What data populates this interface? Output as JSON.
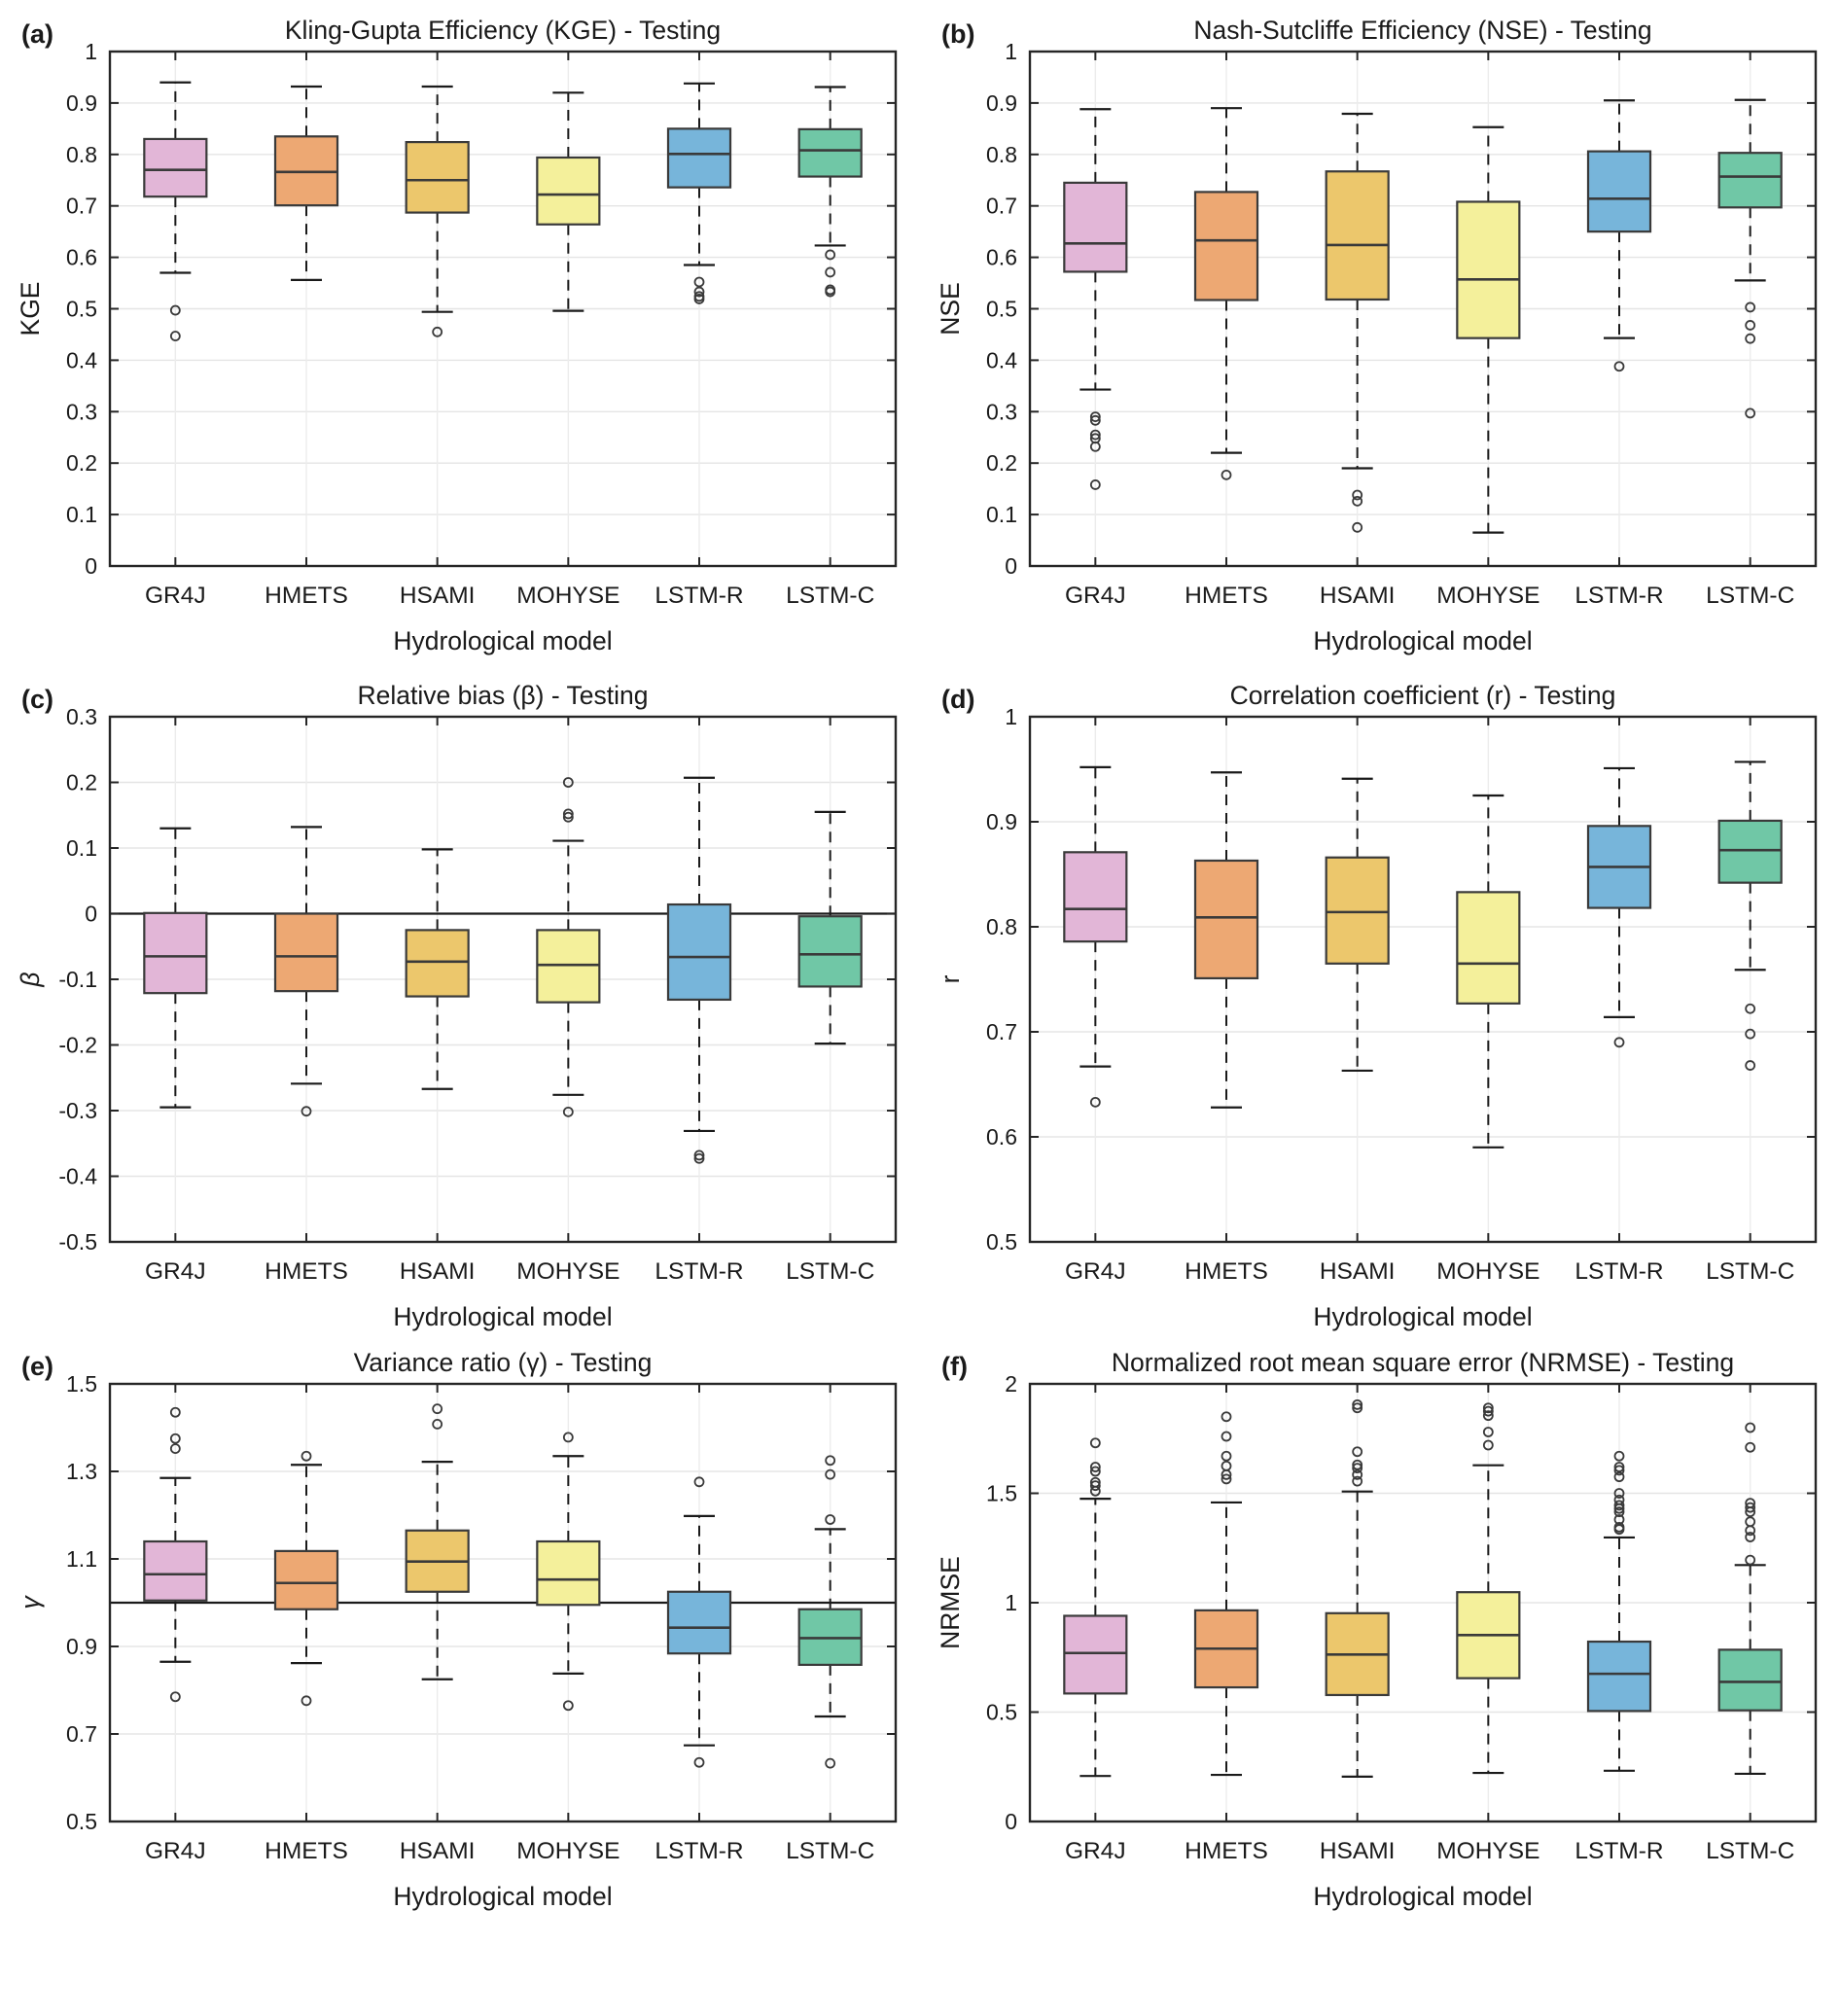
{
  "figure": {
    "xlabel": "Hydrological model",
    "categories": [
      "GR4J",
      "HMETS",
      "HSAMI",
      "MOHYSE",
      "LSTM-R",
      "LSTM-C"
    ],
    "box_colors": [
      "#e2b6d7",
      "#eda873",
      "#ecc76c",
      "#f4f09b",
      "#77b5da",
      "#70c7a6"
    ],
    "box_edge_color": "#3a3a3a",
    "axis_color": "#262626",
    "grid_color": "#e5e5e5",
    "whisker_color": "#1a1a1a",
    "background": "#ffffff"
  },
  "chart_data": [
    {
      "type": "boxplot",
      "panel_label": "(a)",
      "title": "Kling-Gupta Efficiency (KGE) - Testing",
      "ylabel": "KGE",
      "ylabel_italic": false,
      "ylim": [
        0,
        1
      ],
      "yticks": [
        0,
        0.1,
        0.2,
        0.3,
        0.4,
        0.5,
        0.6,
        0.7,
        0.8,
        0.9,
        1
      ],
      "ref_line": null,
      "boxes": [
        {
          "model": "GR4J",
          "whislo": 0.57,
          "q1": 0.718,
          "med": 0.77,
          "q3": 0.83,
          "whishi": 0.94,
          "outliers": [
            0.497,
            0.447
          ]
        },
        {
          "model": "HMETS",
          "whislo": 0.556,
          "q1": 0.701,
          "med": 0.766,
          "q3": 0.835,
          "whishi": 0.932,
          "outliers": []
        },
        {
          "model": "HSAMI",
          "whislo": 0.494,
          "q1": 0.687,
          "med": 0.75,
          "q3": 0.824,
          "whishi": 0.932,
          "outliers": [
            0.455
          ]
        },
        {
          "model": "MOHYSE",
          "whislo": 0.496,
          "q1": 0.664,
          "med": 0.722,
          "q3": 0.794,
          "whishi": 0.92,
          "outliers": []
        },
        {
          "model": "LSTM-R",
          "whislo": 0.585,
          "q1": 0.736,
          "med": 0.801,
          "q3": 0.85,
          "whishi": 0.938,
          "outliers": [
            0.552,
            0.533,
            0.524,
            0.519
          ]
        },
        {
          "model": "LSTM-C",
          "whislo": 0.623,
          "q1": 0.757,
          "med": 0.808,
          "q3": 0.849,
          "whishi": 0.931,
          "outliers": [
            0.605,
            0.571,
            0.537,
            0.533
          ]
        }
      ]
    },
    {
      "type": "boxplot",
      "panel_label": "(b)",
      "title": "Nash-Sutcliffe Efficiency (NSE) - Testing",
      "ylabel": "NSE",
      "ylabel_italic": false,
      "ylim": [
        0,
        1
      ],
      "yticks": [
        0,
        0.1,
        0.2,
        0.3,
        0.4,
        0.5,
        0.6,
        0.7,
        0.8,
        0.9,
        1
      ],
      "ref_line": null,
      "boxes": [
        {
          "model": "GR4J",
          "whislo": 0.343,
          "q1": 0.572,
          "med": 0.627,
          "q3": 0.745,
          "whishi": 0.888,
          "outliers": [
            0.29,
            0.283,
            0.255,
            0.248,
            0.232,
            0.158
          ]
        },
        {
          "model": "HMETS",
          "whislo": 0.22,
          "q1": 0.517,
          "med": 0.633,
          "q3": 0.727,
          "whishi": 0.89,
          "outliers": [
            0.177
          ]
        },
        {
          "model": "HSAMI",
          "whislo": 0.19,
          "q1": 0.518,
          "med": 0.624,
          "q3": 0.767,
          "whishi": 0.879,
          "outliers": [
            0.138,
            0.126,
            0.075
          ]
        },
        {
          "model": "MOHYSE",
          "whislo": 0.065,
          "q1": 0.443,
          "med": 0.557,
          "q3": 0.708,
          "whishi": 0.853,
          "outliers": []
        },
        {
          "model": "LSTM-R",
          "whislo": 0.443,
          "q1": 0.65,
          "med": 0.714,
          "q3": 0.806,
          "whishi": 0.905,
          "outliers": [
            0.388
          ]
        },
        {
          "model": "LSTM-C",
          "whislo": 0.555,
          "q1": 0.697,
          "med": 0.757,
          "q3": 0.803,
          "whishi": 0.906,
          "outliers": [
            0.503,
            0.468,
            0.442,
            0.297
          ]
        }
      ]
    },
    {
      "type": "boxplot",
      "panel_label": "(c)",
      "title": "Relative bias (β) - Testing",
      "ylabel": "β",
      "ylabel_italic": true,
      "ylim": [
        -0.5,
        0.3
      ],
      "yticks": [
        -0.5,
        -0.4,
        -0.3,
        -0.2,
        -0.1,
        0,
        0.1,
        0.2,
        0.3
      ],
      "ref_line": 0,
      "boxes": [
        {
          "model": "GR4J",
          "whislo": -0.295,
          "q1": -0.121,
          "med": -0.065,
          "q3": 0.001,
          "whishi": 0.13,
          "outliers": []
        },
        {
          "model": "HMETS",
          "whislo": -0.259,
          "q1": -0.118,
          "med": -0.065,
          "q3": 0.0,
          "whishi": 0.132,
          "outliers": [
            -0.301
          ]
        },
        {
          "model": "HSAMI",
          "whislo": -0.267,
          "q1": -0.126,
          "med": -0.073,
          "q3": -0.025,
          "whishi": 0.098,
          "outliers": []
        },
        {
          "model": "MOHYSE",
          "whislo": -0.276,
          "q1": -0.135,
          "med": -0.078,
          "q3": -0.025,
          "whishi": 0.111,
          "outliers": [
            0.2,
            0.152,
            0.147,
            -0.302
          ]
        },
        {
          "model": "LSTM-R",
          "whislo": -0.331,
          "q1": -0.131,
          "med": -0.066,
          "q3": 0.014,
          "whishi": 0.207,
          "outliers": [
            -0.368,
            -0.373
          ]
        },
        {
          "model": "LSTM-C",
          "whislo": -0.198,
          "q1": -0.111,
          "med": -0.062,
          "q3": -0.004,
          "whishi": 0.155,
          "outliers": []
        }
      ]
    },
    {
      "type": "boxplot",
      "panel_label": "(d)",
      "title": "Correlation coefficient (r) - Testing",
      "ylabel": "r",
      "ylabel_italic": false,
      "ylim": [
        0.5,
        1
      ],
      "yticks": [
        0.5,
        0.6,
        0.7,
        0.8,
        0.9,
        1
      ],
      "ref_line": null,
      "boxes": [
        {
          "model": "GR4J",
          "whislo": 0.667,
          "q1": 0.786,
          "med": 0.817,
          "q3": 0.871,
          "whishi": 0.952,
          "outliers": [
            0.633
          ]
        },
        {
          "model": "HMETS",
          "whislo": 0.628,
          "q1": 0.751,
          "med": 0.809,
          "q3": 0.863,
          "whishi": 0.947,
          "outliers": []
        },
        {
          "model": "HSAMI",
          "whislo": 0.663,
          "q1": 0.765,
          "med": 0.814,
          "q3": 0.866,
          "whishi": 0.941,
          "outliers": []
        },
        {
          "model": "MOHYSE",
          "whislo": 0.59,
          "q1": 0.727,
          "med": 0.765,
          "q3": 0.833,
          "whishi": 0.925,
          "outliers": []
        },
        {
          "model": "LSTM-R",
          "whislo": 0.714,
          "q1": 0.818,
          "med": 0.857,
          "q3": 0.896,
          "whishi": 0.951,
          "outliers": [
            0.69
          ]
        },
        {
          "model": "LSTM-C",
          "whislo": 0.759,
          "q1": 0.842,
          "med": 0.873,
          "q3": 0.901,
          "whishi": 0.957,
          "outliers": [
            0.722,
            0.698,
            0.668
          ]
        }
      ]
    },
    {
      "type": "boxplot",
      "panel_label": "(e)",
      "title": "Variance ratio (γ) - Testing",
      "ylabel": "γ",
      "ylabel_italic": true,
      "ylim": [
        0.5,
        1.5
      ],
      "yticks": [
        0.5,
        0.7,
        0.9,
        1.1,
        1.3,
        1.5
      ],
      "ref_line": 1,
      "boxes": [
        {
          "model": "GR4J",
          "whislo": 0.865,
          "q1": 1.005,
          "med": 1.065,
          "q3": 1.14,
          "whishi": 1.285,
          "outliers": [
            1.435,
            1.375,
            1.352,
            0.785
          ]
        },
        {
          "model": "HMETS",
          "whislo": 0.862,
          "q1": 0.985,
          "med": 1.045,
          "q3": 1.118,
          "whishi": 1.315,
          "outliers": [
            1.335,
            0.776
          ]
        },
        {
          "model": "HSAMI",
          "whislo": 0.825,
          "q1": 1.025,
          "med": 1.094,
          "q3": 1.165,
          "whishi": 1.322,
          "outliers": [
            1.443,
            1.408
          ]
        },
        {
          "model": "MOHYSE",
          "whislo": 0.838,
          "q1": 0.995,
          "med": 1.053,
          "q3": 1.14,
          "whishi": 1.335,
          "outliers": [
            1.378,
            0.765
          ]
        },
        {
          "model": "LSTM-R",
          "whislo": 0.674,
          "q1": 0.884,
          "med": 0.943,
          "q3": 1.025,
          "whishi": 1.198,
          "outliers": [
            1.276,
            0.635
          ]
        },
        {
          "model": "LSTM-C",
          "whislo": 0.74,
          "q1": 0.858,
          "med": 0.919,
          "q3": 0.985,
          "whishi": 1.168,
          "outliers": [
            1.325,
            1.293,
            1.19,
            0.633
          ]
        }
      ]
    },
    {
      "type": "boxplot",
      "panel_label": "(f)",
      "title": "Normalized root mean square error (NRMSE) - Testing",
      "ylabel": "NRMSE",
      "ylabel_italic": false,
      "ylim": [
        0,
        2
      ],
      "yticks": [
        0,
        0.5,
        1,
        1.5,
        2
      ],
      "ref_line": null,
      "boxes": [
        {
          "model": "GR4J",
          "whislo": 0.208,
          "q1": 0.585,
          "med": 0.77,
          "q3": 0.94,
          "whishi": 1.475,
          "outliers": [
            1.73,
            1.62,
            1.6,
            1.55,
            1.535,
            1.51
          ]
        },
        {
          "model": "HMETS",
          "whislo": 0.213,
          "q1": 0.613,
          "med": 0.79,
          "q3": 0.965,
          "whishi": 1.458,
          "outliers": [
            1.85,
            1.76,
            1.67,
            1.625,
            1.585,
            1.565
          ]
        },
        {
          "model": "HSAMI",
          "whislo": 0.205,
          "q1": 0.578,
          "med": 0.763,
          "q3": 0.952,
          "whishi": 1.508,
          "outliers": [
            1.905,
            1.89,
            1.69,
            1.63,
            1.615,
            1.585,
            1.555
          ]
        },
        {
          "model": "MOHYSE",
          "whislo": 0.222,
          "q1": 0.655,
          "med": 0.852,
          "q3": 1.048,
          "whishi": 1.628,
          "outliers": [
            1.89,
            1.875,
            1.855,
            1.78,
            1.72
          ]
        },
        {
          "model": "LSTM-R",
          "whislo": 0.232,
          "q1": 0.505,
          "med": 0.675,
          "q3": 0.822,
          "whishi": 1.298,
          "outliers": [
            1.67,
            1.62,
            1.605,
            1.575,
            1.5,
            1.47,
            1.445,
            1.43,
            1.415,
            1.38,
            1.345,
            1.335
          ]
        },
        {
          "model": "LSTM-C",
          "whislo": 0.218,
          "q1": 0.508,
          "med": 0.638,
          "q3": 0.785,
          "whishi": 1.172,
          "outliers": [
            1.8,
            1.71,
            1.455,
            1.435,
            1.415,
            1.37,
            1.33,
            1.3,
            1.195
          ]
        }
      ]
    }
  ]
}
